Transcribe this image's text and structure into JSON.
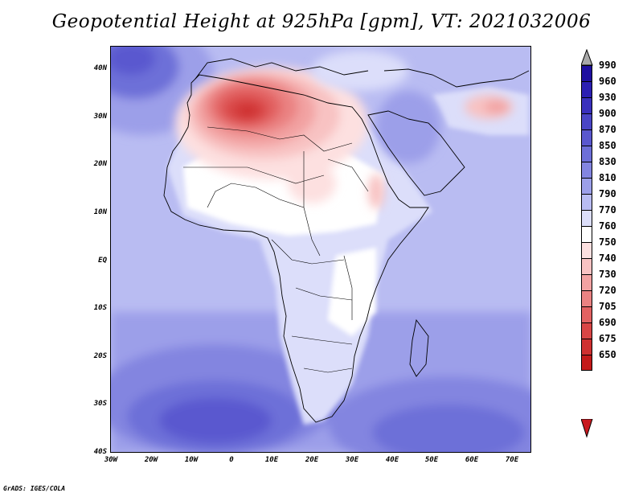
{
  "title": "Geopotential Height at 925hPa [gpm], VT: 2021032006",
  "footer": "GrADS: IGES/COLA",
  "map": {
    "lat_labels": [
      "40N",
      "30N",
      "20N",
      "10N",
      "EQ",
      "10S",
      "20S",
      "30S",
      "40S"
    ],
    "lon_labels": [
      "30W",
      "20W",
      "10W",
      "0",
      "10E",
      "20E",
      "30E",
      "40E",
      "50E",
      "60E",
      "70E"
    ],
    "lat_range": [
      -40,
      45
    ],
    "lon_range": [
      -30,
      75
    ]
  },
  "colorbar": {
    "top_arrow_color": "#a9a9a9",
    "bottom_arrow_color": "#c8191f",
    "levels": [
      {
        "label": "990",
        "color": "#1f0fa0"
      },
      {
        "label": "960",
        "color": "#2c1fb2"
      },
      {
        "label": "930",
        "color": "#3a30bd"
      },
      {
        "label": "900",
        "color": "#4a45c6"
      },
      {
        "label": "870",
        "color": "#5a58cf"
      },
      {
        "label": "850",
        "color": "#6d6fd8"
      },
      {
        "label": "830",
        "color": "#8385e0"
      },
      {
        "label": "810",
        "color": "#9c9fe9"
      },
      {
        "label": "790",
        "color": "#b9bcf2"
      },
      {
        "label": "770",
        "color": "#dcdefa"
      },
      {
        "label": "760",
        "color": "#ffffff"
      },
      {
        "label": "750",
        "color": "#fde0e0"
      },
      {
        "label": "740",
        "color": "#f8c2c2"
      },
      {
        "label": "730",
        "color": "#f2a2a2"
      },
      {
        "label": "720",
        "color": "#ea8282"
      },
      {
        "label": "705",
        "color": "#e26262"
      },
      {
        "label": "690",
        "color": "#d94646"
      },
      {
        "label": "675",
        "color": "#cf3030"
      },
      {
        "label": "650",
        "color": "#c31a1a"
      }
    ]
  }
}
